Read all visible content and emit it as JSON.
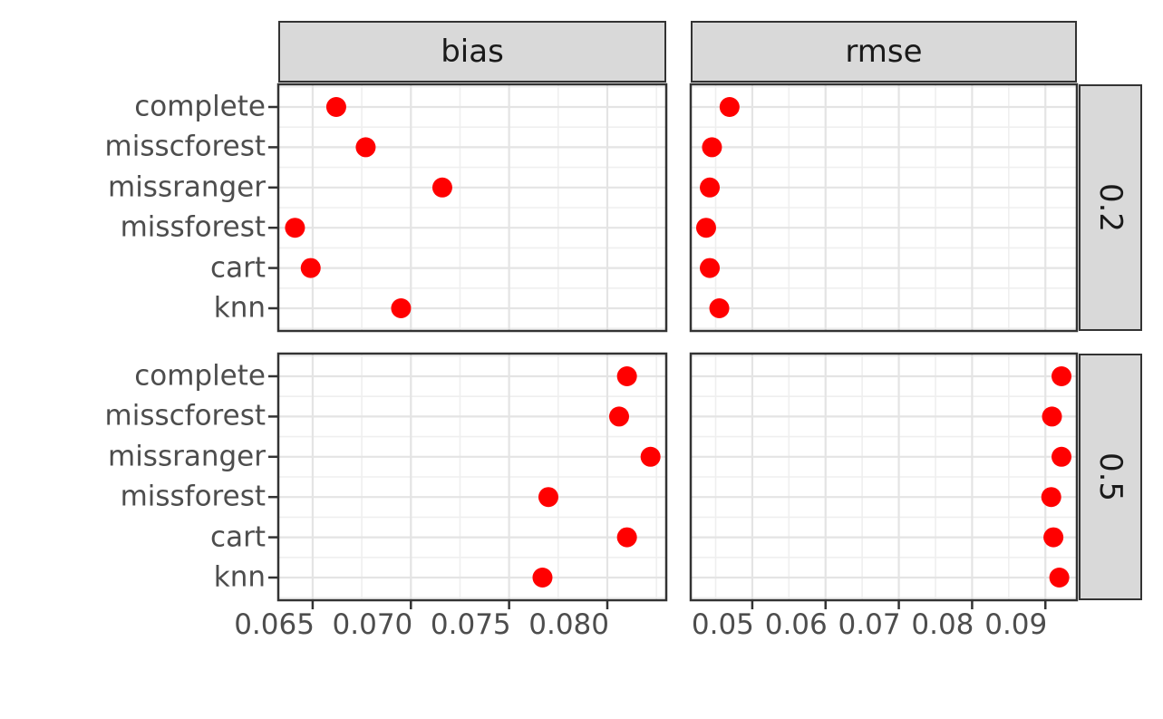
{
  "chart_data": {
    "type": "scatter",
    "subtype": "faceted-dot-plot",
    "facet_cols": [
      "bias",
      "rmse"
    ],
    "facet_rows": [
      "0.2",
      "0.5"
    ],
    "categories": [
      "complete",
      "misscforest",
      "missranger",
      "missforest",
      "cart",
      "knn"
    ],
    "x_axes": {
      "bias": {
        "xlim": [
          0.06325,
          0.083
        ],
        "ticks": [
          0.065,
          0.07,
          0.075,
          0.08
        ],
        "tick_labels": [
          "0.065",
          "0.070",
          "0.075",
          "0.080"
        ],
        "minor_ticks": [
          0.0675,
          0.0725,
          0.0775,
          0.0825
        ]
      },
      "rmse": {
        "xlim": [
          0.0416,
          0.0943
        ],
        "ticks": [
          0.05,
          0.06,
          0.07,
          0.08,
          0.09
        ],
        "tick_labels": [
          "0.05",
          "0.06",
          "0.07",
          "0.08",
          "0.09"
        ],
        "minor_ticks": [
          0.045,
          0.055,
          0.065,
          0.075,
          0.085
        ]
      }
    },
    "series": [
      {
        "facet_col": "bias",
        "facet_row": "0.2",
        "values": [
          0.0662,
          0.0677,
          0.0716,
          0.0641,
          0.0649,
          0.0695
        ]
      },
      {
        "facet_col": "rmse",
        "facet_row": "0.2",
        "values": [
          0.0469,
          0.0445,
          0.0442,
          0.0437,
          0.0442,
          0.0455
        ]
      },
      {
        "facet_col": "bias",
        "facet_row": "0.5",
        "values": [
          0.081,
          0.0806,
          0.0822,
          0.077,
          0.081,
          0.0767
        ]
      },
      {
        "facet_col": "rmse",
        "facet_row": "0.5",
        "values": [
          0.0922,
          0.0909,
          0.0922,
          0.0908,
          0.0911,
          0.0919
        ]
      }
    ],
    "point_color": "#FF0000",
    "grid": "on",
    "legend": "none",
    "styles": {
      "panel_bg": "#FFFFFF",
      "strip_bg": "#D9D9D9",
      "border_color": "#333333",
      "grid_major": "#E4E4E4",
      "grid_minor": "#EFEFEF",
      "axis_text_color": "#4D4D4D",
      "strip_text_color": "#1A1A1A"
    }
  }
}
